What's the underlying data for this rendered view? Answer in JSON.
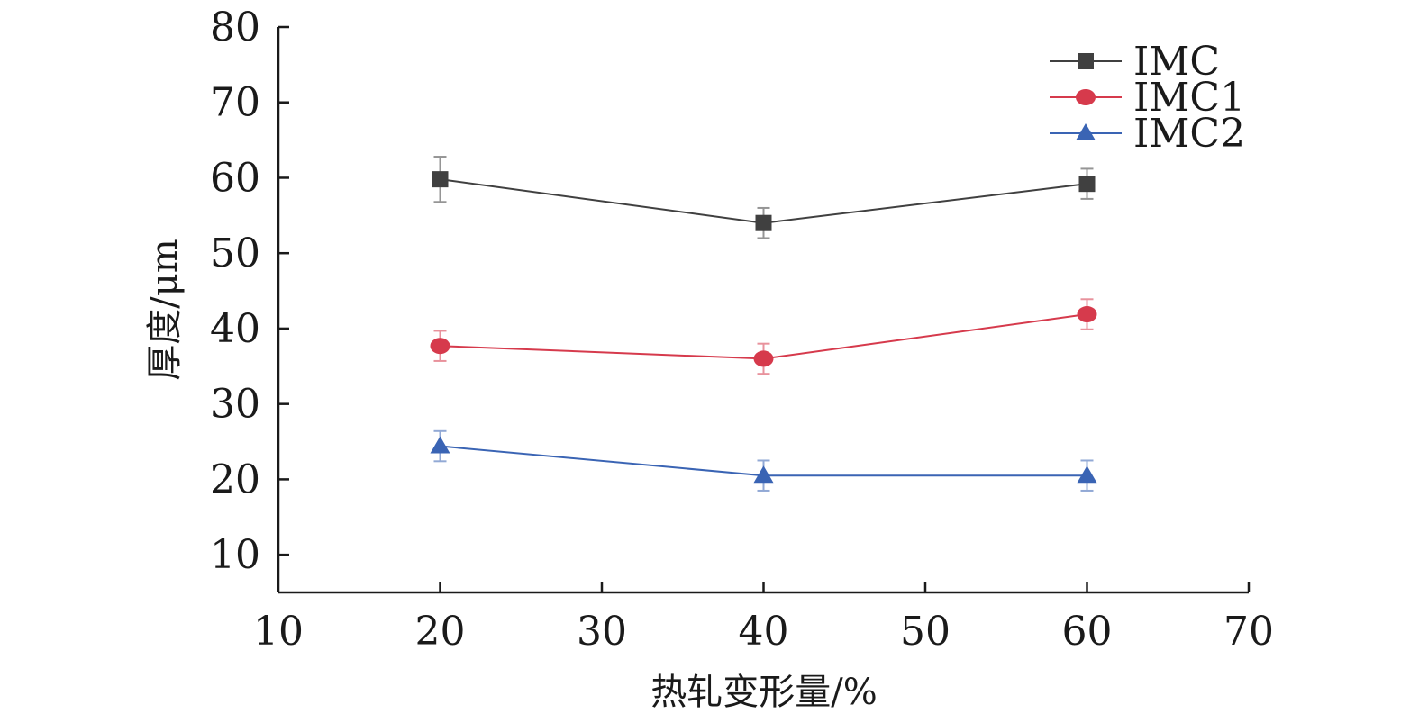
{
  "chart_data": {
    "type": "line",
    "xlabel": "热轧变形量/%",
    "ylabel": "厚度/μm",
    "xlim": [
      10,
      70
    ],
    "ylim": [
      5,
      80
    ],
    "xticks": [
      "10",
      "20",
      "30",
      "40",
      "50",
      "60",
      "70"
    ],
    "yticks": [
      "10",
      "20",
      "30",
      "40",
      "50",
      "60",
      "70",
      "80"
    ],
    "x": [
      20,
      40,
      60
    ],
    "legend_position": "top-right",
    "grid": false,
    "series": [
      {
        "name": "IMC",
        "marker": "square",
        "color": "#404040",
        "values": [
          59.8,
          54.0,
          59.2
        ],
        "errors": [
          3.0,
          2.0,
          2.0
        ]
      },
      {
        "name": "IMC1",
        "marker": "circle",
        "color": "#d63a4c",
        "values": [
          37.7,
          36.0,
          41.9
        ],
        "errors": [
          2.0,
          2.0,
          2.0
        ]
      },
      {
        "name": "IMC2",
        "marker": "triangle",
        "color": "#3a64b4",
        "values": [
          24.4,
          20.5,
          20.5
        ],
        "errors": [
          2.0,
          2.0,
          2.0
        ]
      }
    ]
  }
}
